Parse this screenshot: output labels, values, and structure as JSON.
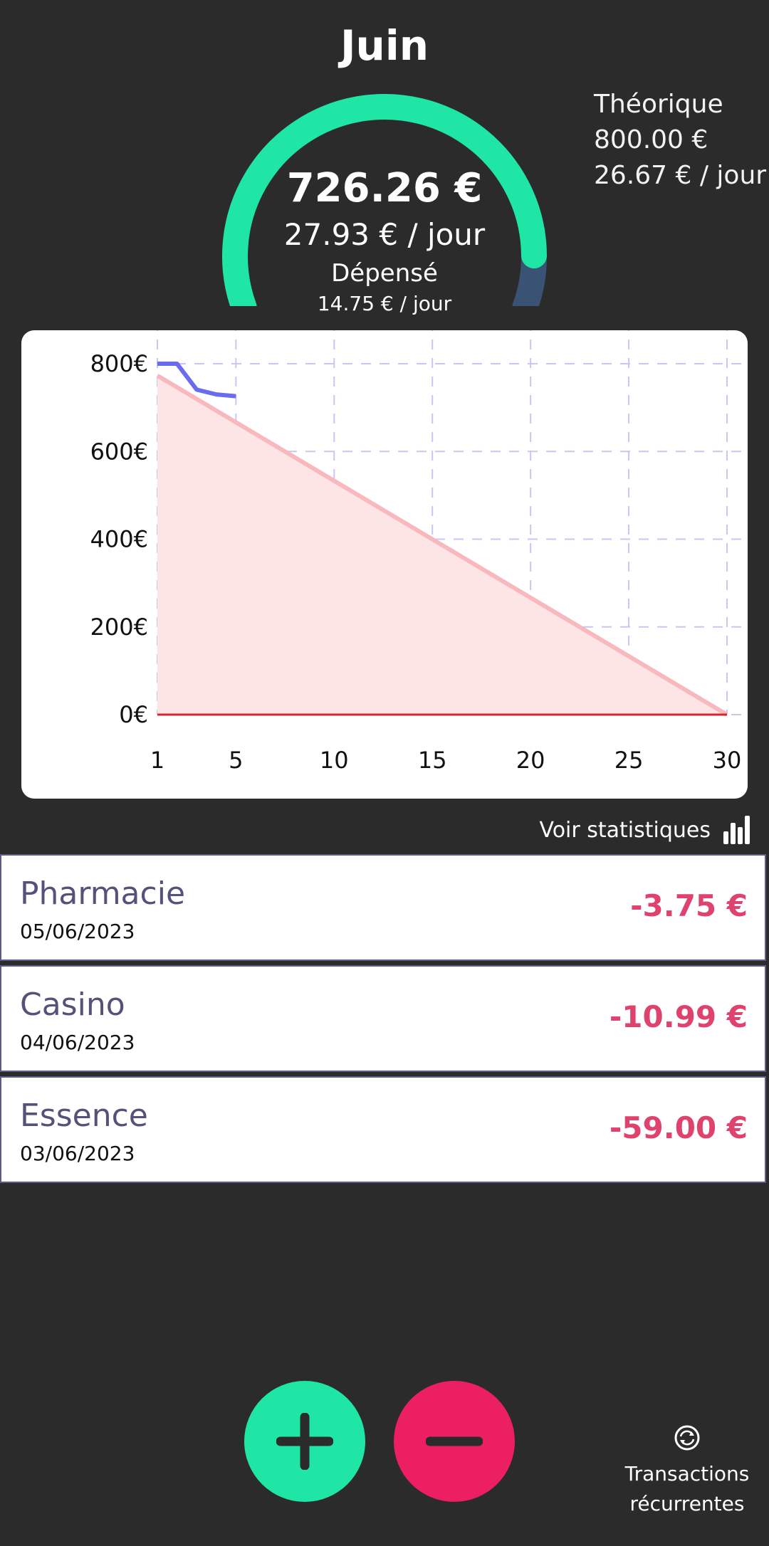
{
  "header": {
    "month": "Juin",
    "remaining_amount": "726.26 €",
    "remaining_per_day": "27.93 € / jour",
    "spent_label": "Dépensé",
    "spent_per_day": "14.75 € / jour",
    "theoretical_label": "Théorique",
    "theoretical_amount": "800.00 €",
    "theoretical_per_day": "26.67 € / jour",
    "gauge_remaining_fraction": 0.908
  },
  "colors": {
    "background": "#2b2b2b",
    "accent_green": "#1fe6a4",
    "accent_red": "#ec1f62",
    "gauge_track": "#3a5273",
    "amount_negative": "#e0426e",
    "actual_line": "#6b6bf0",
    "theoretical_line": "#f7b9bd",
    "zero_line": "#d9232e"
  },
  "chart_data": {
    "type": "line",
    "x_tick_labels": [
      "1",
      "5",
      "10",
      "15",
      "20",
      "25",
      "30"
    ],
    "y_tick_labels": [
      "800€",
      "600€",
      "400€",
      "200€",
      "0€"
    ],
    "xlim": [
      1,
      30
    ],
    "ylim": [
      0,
      800
    ],
    "grid": true,
    "series": [
      {
        "x": [
          1,
          2,
          3,
          4,
          5
        ],
        "y": [
          800,
          800,
          741,
          730,
          726
        ]
      },
      {
        "x": [
          1,
          30
        ],
        "y": [
          773,
          0
        ],
        "fill": true
      },
      {
        "x": [
          1,
          30
        ],
        "y": [
          0,
          0
        ]
      }
    ]
  },
  "stats_link": {
    "label": "Voir statistiques",
    "icon": "bar-chart-icon"
  },
  "transactions": [
    {
      "name": "Pharmacie",
      "date": "05/06/2023",
      "amount": "-3.75 €"
    },
    {
      "name": "Casino",
      "date": "04/06/2023",
      "amount": "-10.99 €"
    },
    {
      "name": "Essence",
      "date": "03/06/2023",
      "amount": "-59.00 €"
    }
  ],
  "actions": {
    "add_icon": "plus-icon",
    "remove_icon": "minus-icon",
    "recurring_icon": "refresh-icon",
    "recurring_line1": "Transactions",
    "recurring_line2": "récurrentes"
  }
}
